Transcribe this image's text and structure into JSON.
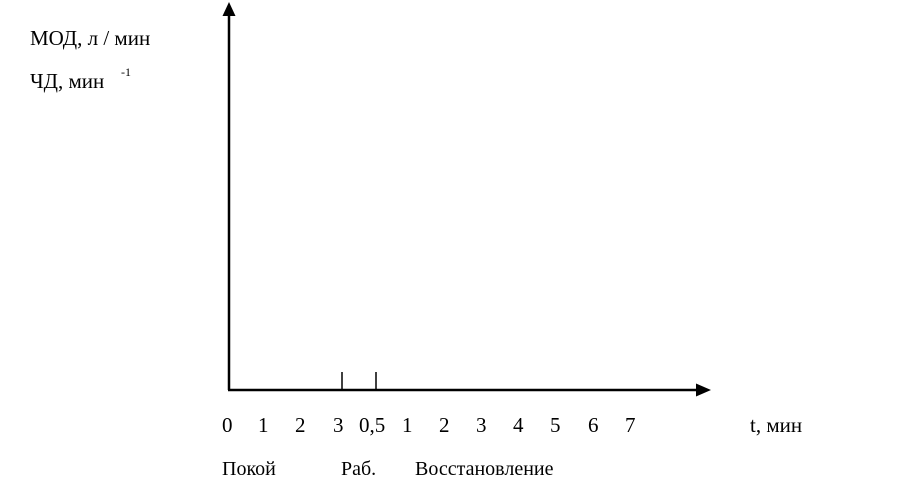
{
  "chart_data": {
    "type": "line",
    "title": "",
    "ylabel_lines": [
      "МОД, л / мин",
      "ЧД, мин"
    ],
    "ylabel_superscript": "-1",
    "xlabel": "t, мин",
    "x_tick_labels": [
      "0",
      "1",
      "2",
      "3",
      "0,5",
      "1",
      "2",
      "3",
      "4",
      "5",
      "6",
      "7"
    ],
    "phase_labels": [
      "Покой",
      "Раб.",
      "Восстановление"
    ],
    "phase_boundaries": [
      "3",
      "0,5"
    ],
    "series": [],
    "grid": false,
    "legend": "none"
  }
}
